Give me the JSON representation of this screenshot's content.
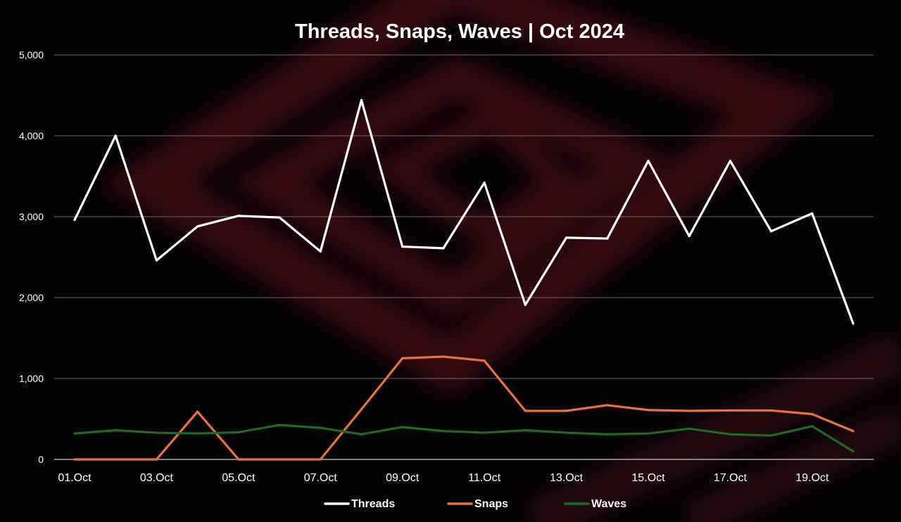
{
  "chart_data": {
    "type": "line",
    "title": "Threads, Snaps, Waves | Oct 2024",
    "xlabel": "",
    "ylabel": "",
    "ylim": [
      0,
      5000
    ],
    "yticks": [
      0,
      1000,
      2000,
      3000,
      4000,
      5000
    ],
    "ytick_labels": [
      "0",
      "1,000",
      "2,000",
      "3,000",
      "4,000",
      "5,000"
    ],
    "grid": true,
    "legend_position": "bottom",
    "categories": [
      "01.Oct",
      "02.Oct",
      "03.Oct",
      "04.Oct",
      "05.Oct",
      "06.Oct",
      "07.Oct",
      "08.Oct",
      "09.Oct",
      "10.Oct",
      "11.Oct",
      "12.Oct",
      "13.Oct",
      "14.Oct",
      "15.Oct",
      "16.Oct",
      "17.Oct",
      "18.Oct",
      "19.Oct",
      "20.Oct"
    ],
    "xtick_labels": [
      "01.Oct",
      "03.Oct",
      "05.Oct",
      "07.Oct",
      "09.Oct",
      "11.Oct",
      "13.Oct",
      "15.Oct",
      "17.Oct",
      "19.Oct"
    ],
    "series": [
      {
        "name": "Threads",
        "color": "#ffffff",
        "values": [
          2960,
          4000,
          2460,
          2880,
          3010,
          2990,
          2570,
          4440,
          2630,
          2610,
          3420,
          1910,
          2740,
          2730,
          3690,
          2760,
          3690,
          2820,
          3040,
          1680
        ]
      },
      {
        "name": "Snaps",
        "color": "#e8733a",
        "values": [
          0,
          0,
          0,
          590,
          0,
          0,
          0,
          620,
          1250,
          1270,
          1220,
          600,
          600,
          670,
          610,
          600,
          605,
          605,
          560,
          350
        ]
      },
      {
        "name": "Waves",
        "color": "#1e6b20",
        "values": [
          320,
          360,
          330,
          320,
          335,
          425,
          390,
          310,
          400,
          350,
          330,
          360,
          330,
          310,
          320,
          380,
          310,
          295,
          410,
          100
        ]
      }
    ]
  }
}
